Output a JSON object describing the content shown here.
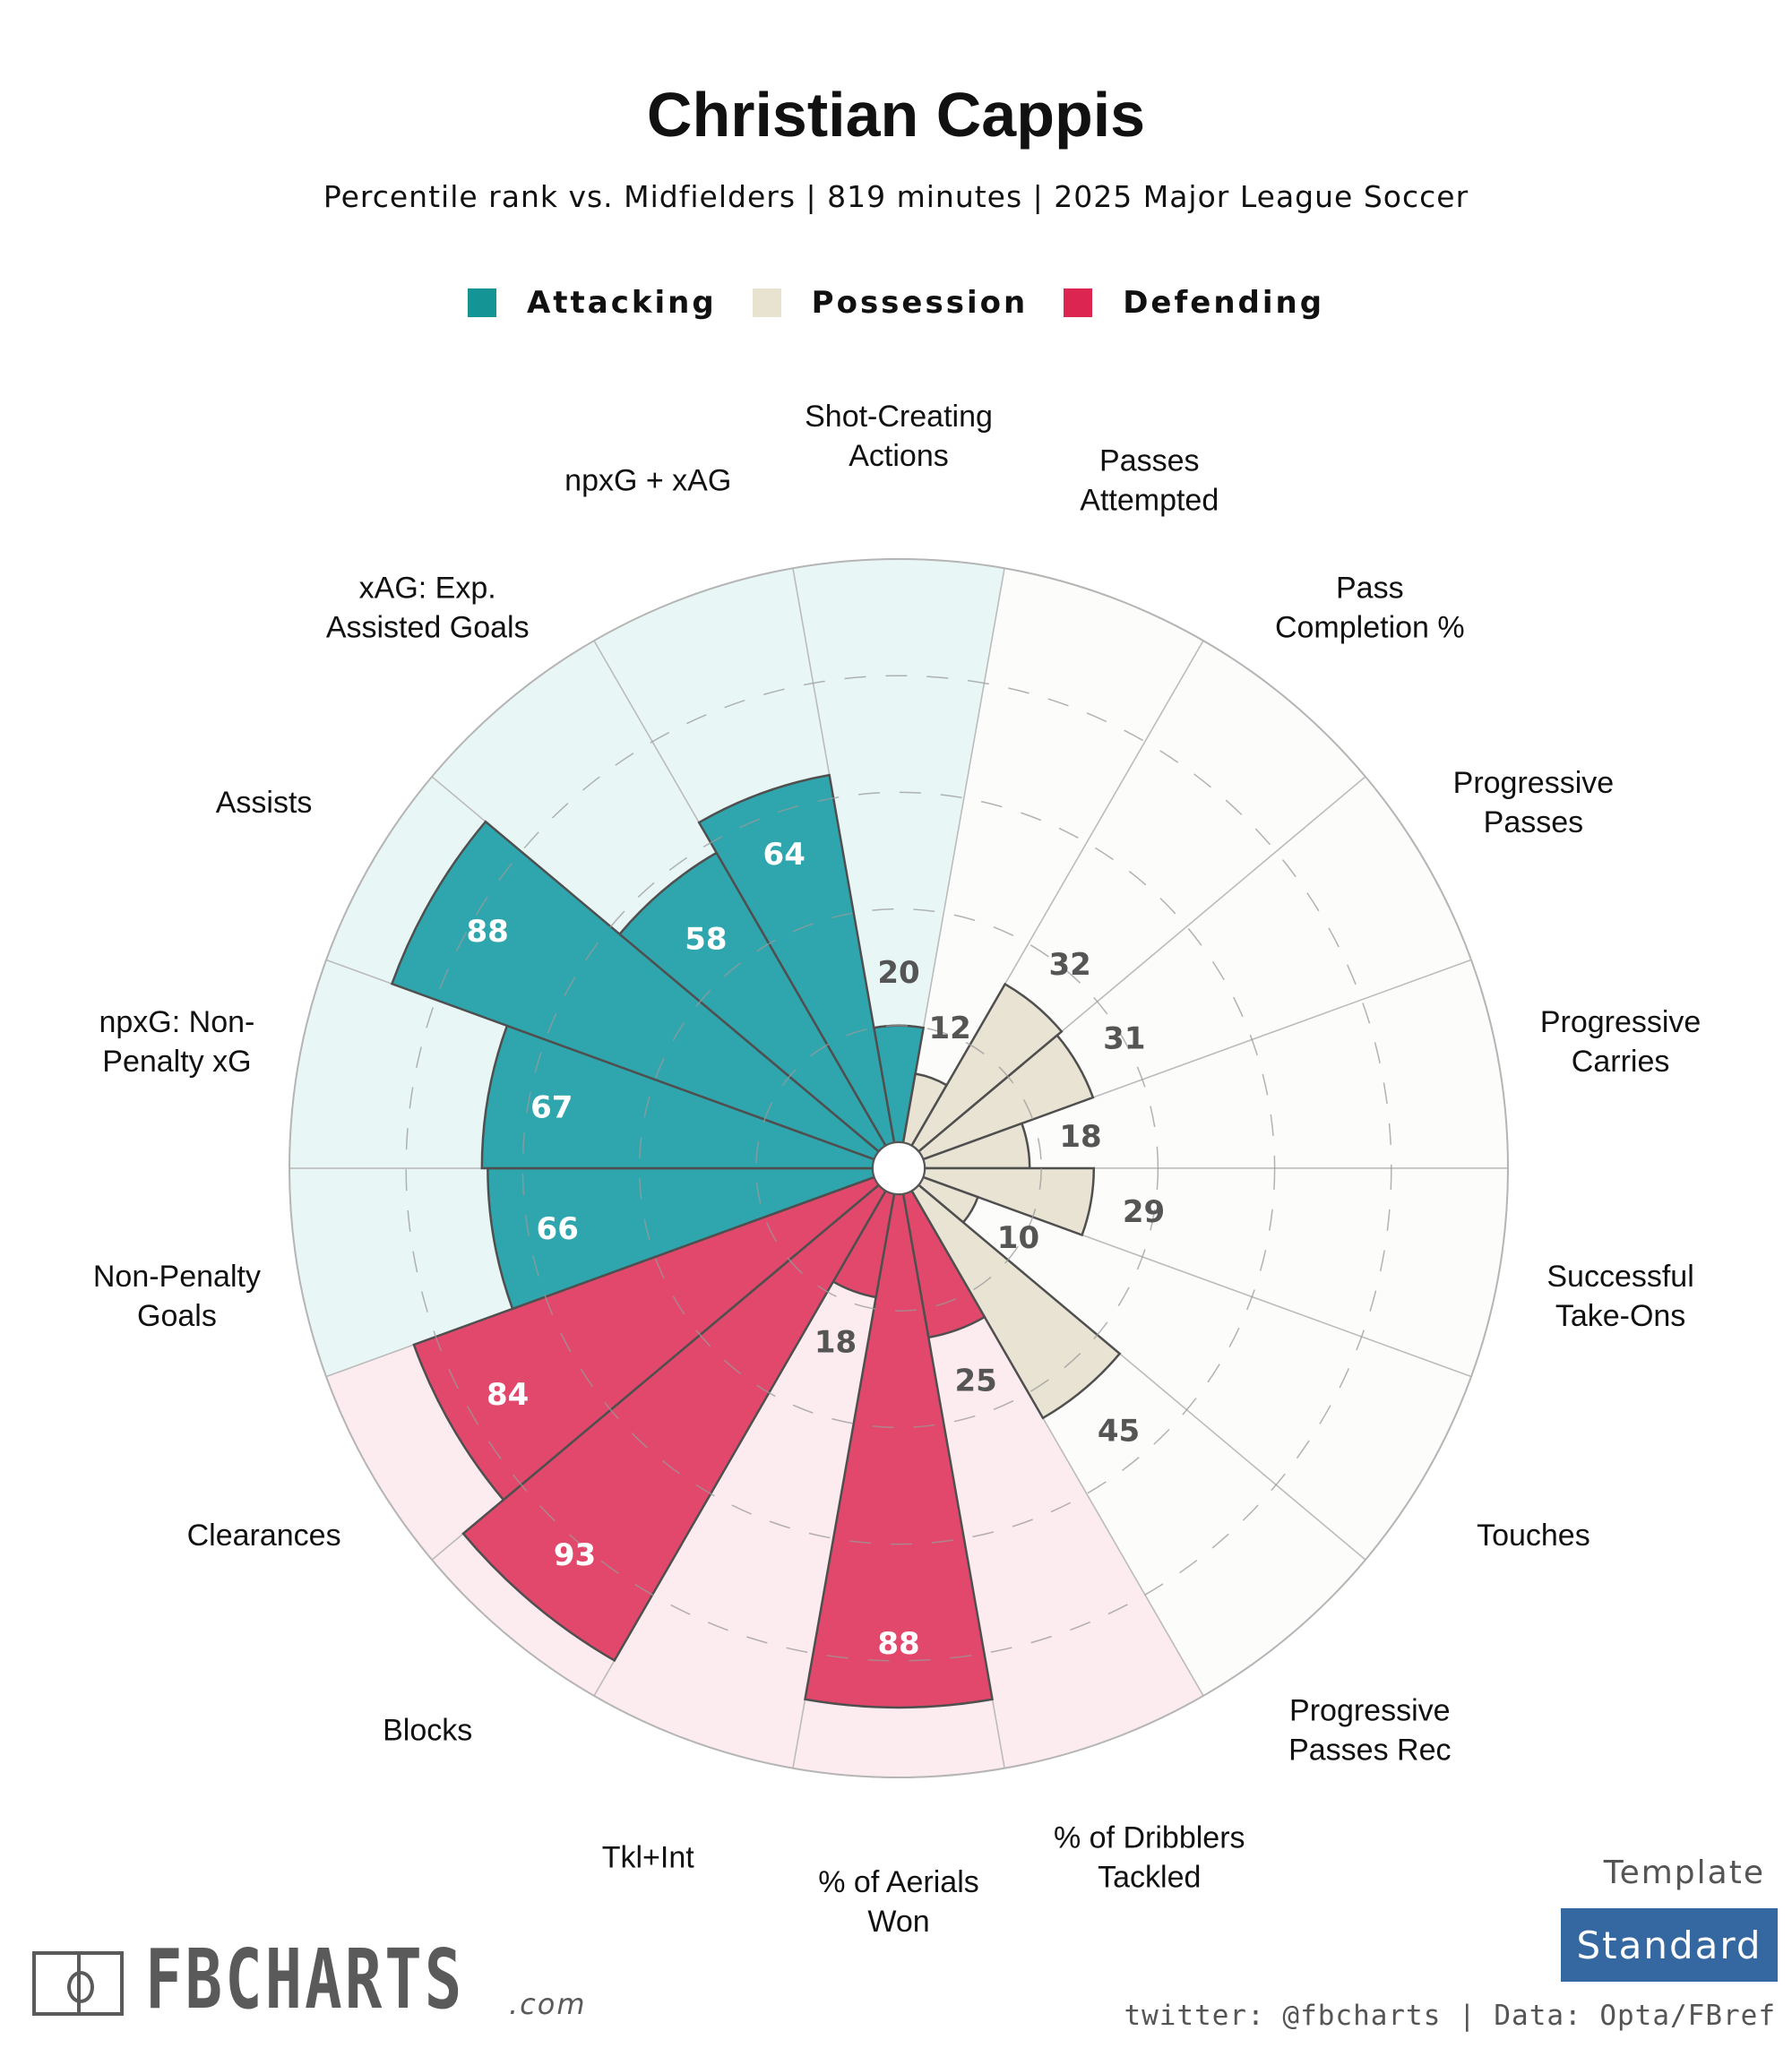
{
  "title": "Christian Cappis",
  "subtitle": "Percentile rank vs. Midfielders | 819 minutes | 2025 Major League Soccer",
  "legend": [
    {
      "label": "Attacking",
      "color": "#149494"
    },
    {
      "label": "Possession",
      "color": "#e8e2d0"
    },
    {
      "label": "Defending",
      "color": "#dc2550"
    }
  ],
  "chart_data": {
    "type": "polar-bar",
    "title": "Christian Cappis",
    "rlim": [
      0,
      100
    ],
    "gridlines": [
      20,
      40,
      60,
      80
    ],
    "grid": true,
    "legend_position": "top",
    "categories": [
      {
        "label": [
          "Shot-Creating",
          "Actions"
        ],
        "value": 20,
        "group": "Attacking"
      },
      {
        "label": [
          "Passes",
          "Attempted"
        ],
        "value": 12,
        "group": "Possession"
      },
      {
        "label": [
          "Pass",
          "Completion %"
        ],
        "value": 32,
        "group": "Possession"
      },
      {
        "label": [
          "Progressive",
          "Passes"
        ],
        "value": 31,
        "group": "Possession"
      },
      {
        "label": [
          "Progressive",
          "Carries"
        ],
        "value": 18,
        "group": "Possession"
      },
      {
        "label": [
          "Successful",
          "Take-Ons"
        ],
        "value": 29,
        "group": "Possession"
      },
      {
        "label": [
          "Touches"
        ],
        "value": 10,
        "group": "Possession"
      },
      {
        "label": [
          "Progressive",
          "Passes Rec"
        ],
        "value": 45,
        "group": "Possession"
      },
      {
        "label": [
          "% of Dribblers",
          "Tackled"
        ],
        "value": 25,
        "group": "Defending"
      },
      {
        "label": [
          "% of Aerials",
          "Won"
        ],
        "value": 88,
        "group": "Defending"
      },
      {
        "label": [
          "Tkl+Int"
        ],
        "value": 18,
        "group": "Defending"
      },
      {
        "label": [
          "Blocks"
        ],
        "value": 93,
        "group": "Defending"
      },
      {
        "label": [
          "Clearances"
        ],
        "value": 84,
        "group": "Defending"
      },
      {
        "label": [
          "Non-Penalty",
          "Goals"
        ],
        "value": 66,
        "group": "Attacking"
      },
      {
        "label": [
          "npxG: Non-",
          "Penalty xG"
        ],
        "value": 67,
        "group": "Attacking"
      },
      {
        "label": [
          "Assists"
        ],
        "value": 88,
        "group": "Attacking"
      },
      {
        "label": [
          "xAG: Exp.",
          "Assisted Goals"
        ],
        "value": 58,
        "group": "Attacking"
      },
      {
        "label": [
          "npxG + xAG"
        ],
        "value": 64,
        "group": "Attacking"
      }
    ],
    "group_colors": {
      "Attacking": {
        "bar": "#2fa6ae",
        "bg": "#e9f6f6",
        "text": "#ffffff",
        "text_low": "#555555"
      },
      "Possession": {
        "bar": "#e8e3d3",
        "bg": "#fcfcfa",
        "text": "#555555",
        "text_low": "#555555"
      },
      "Defending": {
        "bar": "#e2486b",
        "bg": "#fcebef",
        "text": "#ffffff",
        "text_low": "#555555"
      }
    }
  },
  "footer": {
    "logo_text": "FBCHARTS",
    "logo_suffix": ".com",
    "template_label": "Template",
    "template_value": "Standard",
    "credits": "twitter: @fbcharts | Data: Opta/FBref"
  }
}
